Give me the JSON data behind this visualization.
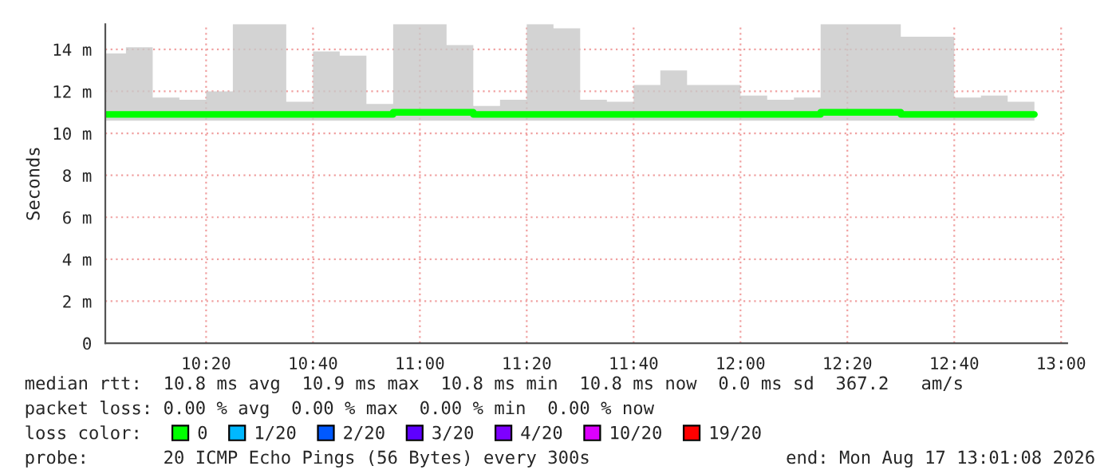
{
  "chart_data": {
    "type": "step",
    "ylabel": "Seconds",
    "legend_title": "loss color:",
    "x": [
      10.0833,
      10.1667,
      10.25,
      10.3333,
      10.4167,
      10.5,
      10.5833,
      10.6667,
      10.75,
      10.8333,
      10.9167,
      11,
      11.0833,
      11.1667,
      11.25,
      11.3333,
      11.4167,
      11.5,
      11.5833,
      11.6667,
      11.75,
      11.8333,
      11.9167,
      12,
      12.0833,
      12.1667,
      12.25,
      12.3333,
      12.4167,
      12.5,
      12.5833,
      12.6667,
      12.75,
      12.8333,
      12.9167
    ],
    "series": [
      {
        "name": "0",
        "color": "#00ff00",
        "values": [
          10.9,
          10.9,
          10.9,
          10.9,
          10.9,
          10.9,
          10.9,
          10.9,
          10.9,
          10.9,
          10.9,
          11,
          11,
          11,
          10.9,
          10.9,
          10.9,
          10.9,
          10.9,
          10.9,
          10.9,
          10.9,
          10.9,
          10.9,
          10.9,
          10.9,
          10.9,
          11,
          11,
          11,
          10.9,
          10.9,
          10.9,
          10.9,
          10.9
        ],
        "lower": [
          10.6,
          10.6,
          10.6,
          10.6,
          10.6,
          10.6,
          10.6,
          10.6,
          10.6,
          10.6,
          10.6,
          10.6,
          10.6,
          10.6,
          10.6,
          10.6,
          10.6,
          10.6,
          10.6,
          10.6,
          10.6,
          10.6,
          10.6,
          10.6,
          10.6,
          10.6,
          10.6,
          10.6,
          10.6,
          10.6,
          10.6,
          10.6,
          10.6,
          10.6,
          10.6
        ],
        "upper": [
          13.8,
          14.1,
          11.7,
          11.6,
          12,
          15.2,
          15.2,
          11.5,
          13.9,
          13.7,
          11.4,
          15.2,
          15.2,
          14.2,
          11.3,
          11.6,
          15.2,
          15,
          11.6,
          11.5,
          12.3,
          13,
          12.3,
          12.3,
          11.8,
          11.6,
          11.7,
          15.2,
          15.2,
          15.2,
          14.6,
          14.6,
          11.7,
          11.8,
          11.5
        ]
      },
      {
        "name": "1/20",
        "color": "#00b8ff",
        "values": [
          null,
          null,
          null,
          null,
          null,
          null,
          null,
          null,
          null,
          null,
          null,
          null,
          null,
          null,
          null,
          null,
          null,
          null,
          null,
          null,
          null,
          null,
          null,
          null,
          null,
          null,
          null,
          null,
          null,
          null,
          null,
          null,
          null,
          null,
          null
        ]
      },
      {
        "name": "2/20",
        "color": "#0059ff",
        "values": [
          null,
          null,
          null,
          null,
          null,
          null,
          null,
          null,
          null,
          null,
          null,
          null,
          null,
          null,
          null,
          null,
          null,
          null,
          null,
          null,
          null,
          null,
          null,
          null,
          null,
          null,
          null,
          null,
          null,
          null,
          null,
          null,
          null,
          null,
          null
        ]
      },
      {
        "name": "3/20",
        "color": "#5e00ff",
        "values": [
          null,
          null,
          null,
          null,
          null,
          null,
          null,
          null,
          null,
          null,
          null,
          null,
          null,
          null,
          null,
          null,
          null,
          null,
          null,
          null,
          null,
          null,
          null,
          null,
          null,
          null,
          null,
          null,
          null,
          null,
          null,
          null,
          null,
          null,
          null
        ]
      },
      {
        "name": "4/20",
        "color": "#7e00ff",
        "values": [
          null,
          null,
          null,
          null,
          null,
          null,
          null,
          null,
          null,
          null,
          null,
          null,
          null,
          null,
          null,
          null,
          null,
          null,
          null,
          null,
          null,
          null,
          null,
          null,
          null,
          null,
          null,
          null,
          null,
          null,
          null,
          null,
          null,
          null,
          null
        ]
      },
      {
        "name": "10/20",
        "color": "#dd00ff",
        "values": [
          null,
          null,
          null,
          null,
          null,
          null,
          null,
          null,
          null,
          null,
          null,
          null,
          null,
          null,
          null,
          null,
          null,
          null,
          null,
          null,
          null,
          null,
          null,
          null,
          null,
          null,
          null,
          null,
          null,
          null,
          null,
          null,
          null,
          null,
          null
        ]
      },
      {
        "name": "19/20",
        "color": "#ff0000",
        "values": [
          null,
          null,
          null,
          null,
          null,
          null,
          null,
          null,
          null,
          null,
          null,
          null,
          null,
          null,
          null,
          null,
          null,
          null,
          null,
          null,
          null,
          null,
          null,
          null,
          null,
          null,
          null,
          null,
          null,
          null,
          null,
          null,
          null,
          null,
          null
        ]
      }
    ],
    "xlim": [
      10.0189,
      13.0189
    ],
    "xticks": [
      {
        "value": 10.3333,
        "label": "10:20"
      },
      {
        "value": 10.6667,
        "label": "10:40"
      },
      {
        "value": 11,
        "label": "11:00"
      },
      {
        "value": 11.3333,
        "label": "11:20"
      },
      {
        "value": 11.6667,
        "label": "11:40"
      },
      {
        "value": 12,
        "label": "12:00"
      },
      {
        "value": 12.3333,
        "label": "12:20"
      },
      {
        "value": 12.6667,
        "label": "12:40"
      },
      {
        "value": 13,
        "label": "13:00"
      }
    ],
    "ylim": [
      0,
      15.2
    ],
    "yticks": [
      0,
      {
        "value": 2,
        "label": "2 m"
      },
      {
        "value": 4,
        "label": "4 m"
      },
      {
        "value": 6,
        "label": "6 m"
      },
      {
        "value": 8,
        "label": "8 m"
      },
      {
        "value": 10,
        "label": "10 m"
      },
      {
        "value": 12,
        "label": "12 m"
      },
      {
        "value": 14,
        "label": "14 m"
      }
    ],
    "grid": true,
    "legend": "bottom",
    "annotations": [
      "median rtt:  10.8 ms avg  10.9 ms max  10.8 ms min  10.8 ms now  0.0 ms sd  367.2   am/s",
      "packet loss: 0.00 % avg  0.00 % max  0.00 % min  0.00 % now",
      "probe:       20 ICMP Echo Pings (56 Bytes) every 300s",
      "end: Mon Aug 17 13:01:08 2026"
    ]
  }
}
